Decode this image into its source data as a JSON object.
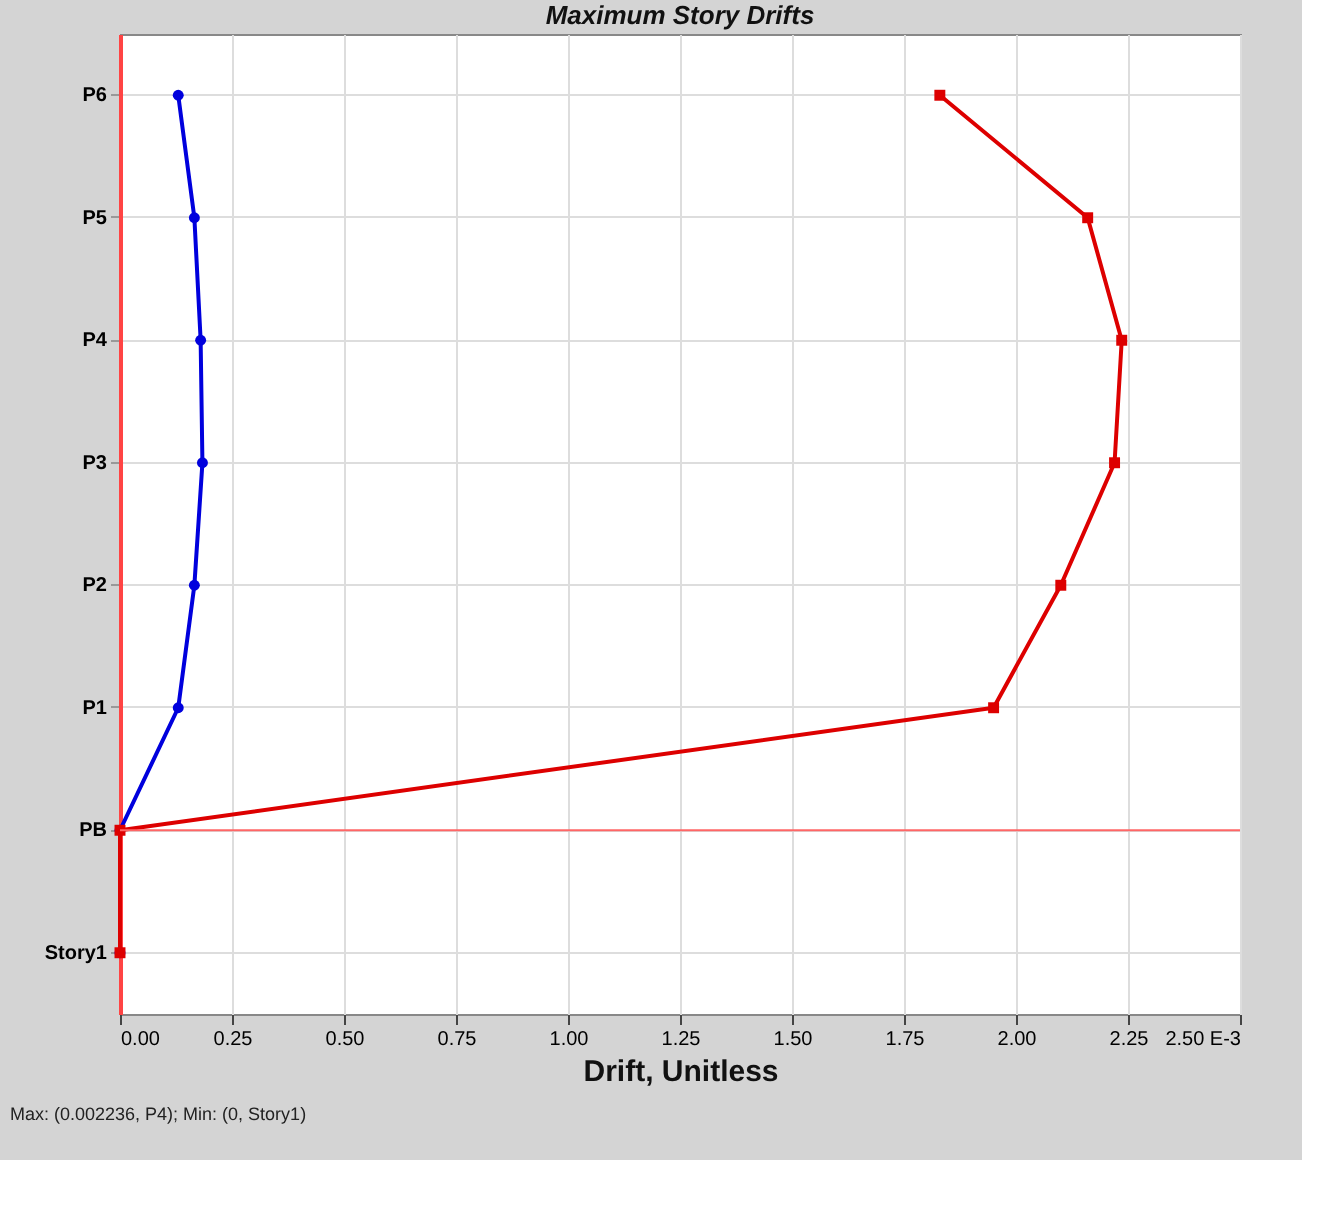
{
  "chart_data": {
    "type": "line",
    "title": "Maximum Story Drifts",
    "xlabel": "Drift, Unitless",
    "orientation": "horizontal",
    "categories": [
      "P6",
      "P5",
      "P4",
      "P3",
      "P2",
      "P1",
      "PB",
      "Story1"
    ],
    "series": [
      {
        "color": "#0000dd",
        "marker": "circle",
        "values": [
          0.13,
          0.166,
          0.18,
          0.184,
          0.166,
          0.13,
          0,
          0
        ]
      },
      {
        "color": "#dd0000",
        "marker": "square",
        "values": [
          1.83,
          2.16,
          2.236,
          2.22,
          2.1,
          1.95,
          0,
          0
        ]
      }
    ],
    "xlim": [
      0,
      2.5
    ],
    "xticks": [
      {
        "value": 0,
        "label": "0.00"
      },
      {
        "value": 0.25,
        "label": "0.25"
      },
      {
        "value": 0.5,
        "label": "0.50"
      },
      {
        "value": 0.75,
        "label": "0.75"
      },
      {
        "value": 1,
        "label": "1.00"
      },
      {
        "value": 1.25,
        "label": "1.25"
      },
      {
        "value": 1.5,
        "label": "1.50"
      },
      {
        "value": 1.75,
        "label": "1.75"
      },
      {
        "value": 2,
        "label": "2.00"
      },
      {
        "value": 2.25,
        "label": "2.25"
      },
      {
        "value": 2.5,
        "label": "2.50 E-3"
      }
    ],
    "ref_lines": [
      {
        "axis": "y",
        "value": "PB",
        "color": "#ff6666"
      }
    ],
    "grid": true,
    "annotations": [
      "Max: (0.002236, P4);   Min: (0, Story1)"
    ]
  }
}
